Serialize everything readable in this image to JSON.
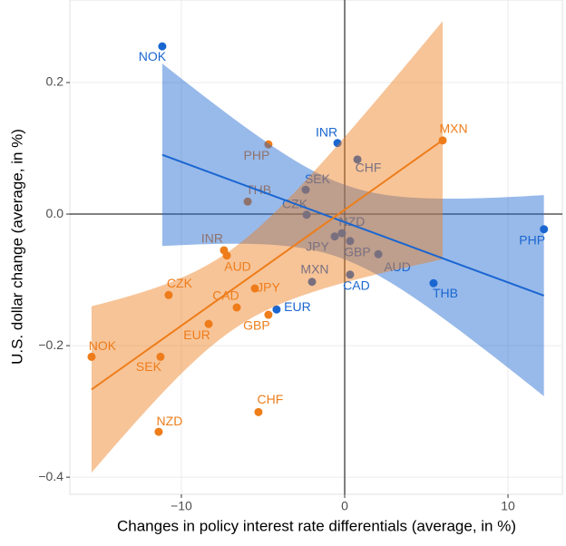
{
  "chart_data": {
    "type": "scatter",
    "x_label": "Changes in policy interest rate differentials (average, in %)",
    "y_label": "U.S. dollar change (average, in %)",
    "xlim": [
      -16.83,
      13.33
    ],
    "ylim": [
      -0.426,
      0.3255
    ],
    "xticks": [
      {
        "value": -10,
        "label": "−10"
      },
      0,
      10
    ],
    "yticks": [
      {
        "value": -0.4,
        "label": "−0.4"
      },
      {
        "value": -0.2,
        "label": "−0.2"
      },
      {
        "value": 0,
        "label": "0.0"
      },
      0.2
    ],
    "grid": true,
    "series": [
      {
        "color": "#1a66d1",
        "labels": [
          "NOK",
          "INR",
          "PHP",
          "THB",
          "CAD",
          "EUR",
          "AUD",
          "GBP",
          "NZD",
          "JPY",
          "CHF",
          "SEK",
          "CZK",
          "MXN"
        ],
        "x": [
          -11.17,
          -0.44,
          12.2,
          5.44,
          0.33,
          -4.17,
          2.06,
          0.33,
          -0.17,
          -0.61,
          0.78,
          -2.39,
          -2.33,
          -2.0
        ],
        "values": [
          0.255,
          0.108,
          -0.023,
          -0.105,
          -0.092,
          -0.145,
          -0.061,
          -0.041,
          -0.029,
          -0.034,
          0.083,
          0.037,
          -0.001,
          -0.103
        ]
      },
      {
        "color": "#ee7d1a",
        "labels": [
          "NOK",
          "SEK",
          "NZD",
          "CHF",
          "CZK",
          "INR",
          "AUD",
          "CAD",
          "EUR",
          "JPY",
          "GBP",
          "MXN",
          "PHP",
          "THB"
        ],
        "x": [
          -15.5,
          -11.28,
          -11.39,
          -5.28,
          -10.78,
          -7.39,
          -7.22,
          -6.61,
          -8.33,
          -5.5,
          -4.67,
          6.0,
          -4.67,
          -5.94
        ],
        "values": [
          -0.217,
          -0.217,
          -0.331,
          -0.301,
          -0.123,
          -0.055,
          -0.063,
          -0.142,
          -0.167,
          -0.113,
          -0.153,
          0.112,
          0.106,
          0.019
        ]
      }
    ]
  }
}
